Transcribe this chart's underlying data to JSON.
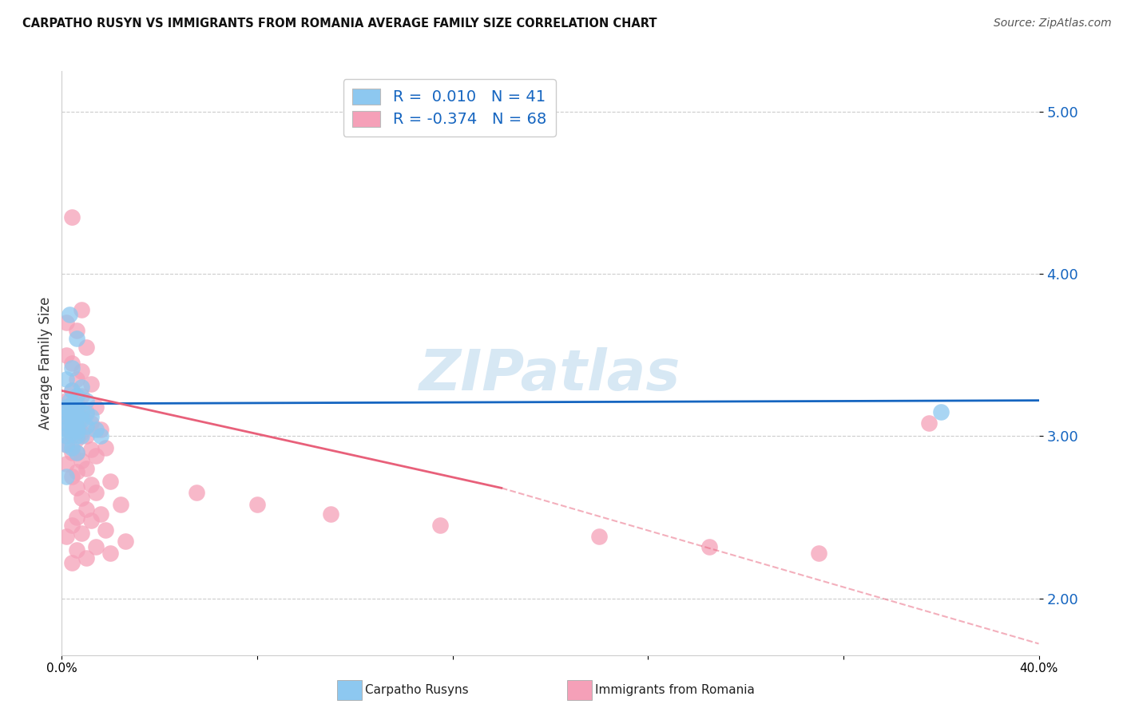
{
  "title": "CARPATHO RUSYN VS IMMIGRANTS FROM ROMANIA AVERAGE FAMILY SIZE CORRELATION CHART",
  "source": "Source: ZipAtlas.com",
  "ylabel": "Average Family Size",
  "right_yticks": [
    2.0,
    3.0,
    4.0,
    5.0
  ],
  "background_color": "#ffffff",
  "legend_label_1": "Carpatho Rusyns",
  "legend_label_2": "Immigrants from Romania",
  "color_blue": "#8DC8F0",
  "color_pink": "#F5A0B8",
  "line_blue": "#1565C0",
  "line_pink": "#E8607A",
  "watermark": "ZIPatlas",
  "blue_x": [
    0.003,
    0.006,
    0.004,
    0.002,
    0.008,
    0.004,
    0.006,
    0.003,
    0.01,
    0.004,
    0.002,
    0.006,
    0.004,
    0.002,
    0.008,
    0.01,
    0.006,
    0.004,
    0.012,
    0.002,
    0.004,
    0.008,
    0.006,
    0.002,
    0.004,
    0.01,
    0.006,
    0.004,
    0.014,
    0.002,
    0.006,
    0.004,
    0.008,
    0.002,
    0.006,
    0.016,
    0.002,
    0.004,
    0.006,
    0.002,
    0.36
  ],
  "blue_y": [
    3.75,
    3.6,
    3.42,
    3.35,
    3.3,
    3.28,
    3.25,
    3.22,
    3.22,
    3.2,
    3.18,
    3.18,
    3.16,
    3.15,
    3.15,
    3.14,
    3.13,
    3.12,
    3.12,
    3.12,
    3.1,
    3.1,
    3.1,
    3.08,
    3.08,
    3.06,
    3.05,
    3.05,
    3.04,
    3.04,
    3.03,
    3.02,
    3.0,
    3.0,
    3.0,
    3.0,
    2.95,
    2.93,
    2.9,
    2.75,
    3.15
  ],
  "pink_x": [
    0.004,
    0.008,
    0.002,
    0.006,
    0.01,
    0.002,
    0.004,
    0.008,
    0.006,
    0.012,
    0.004,
    0.008,
    0.002,
    0.006,
    0.014,
    0.004,
    0.01,
    0.006,
    0.002,
    0.008,
    0.004,
    0.012,
    0.006,
    0.002,
    0.016,
    0.008,
    0.004,
    0.01,
    0.006,
    0.002,
    0.018,
    0.012,
    0.004,
    0.006,
    0.014,
    0.008,
    0.002,
    0.01,
    0.006,
    0.004,
    0.02,
    0.012,
    0.006,
    0.014,
    0.008,
    0.024,
    0.01,
    0.016,
    0.006,
    0.012,
    0.004,
    0.018,
    0.008,
    0.002,
    0.026,
    0.014,
    0.006,
    0.02,
    0.01,
    0.004,
    0.055,
    0.08,
    0.11,
    0.155,
    0.22,
    0.265,
    0.31,
    0.355
  ],
  "pink_y": [
    4.35,
    3.78,
    3.7,
    3.65,
    3.55,
    3.5,
    3.45,
    3.4,
    3.35,
    3.32,
    3.28,
    3.25,
    3.22,
    3.2,
    3.18,
    3.18,
    3.15,
    3.15,
    3.12,
    3.12,
    3.1,
    3.08,
    3.06,
    3.05,
    3.04,
    3.02,
    3.0,
    3.0,
    2.98,
    2.95,
    2.93,
    2.92,
    2.9,
    2.9,
    2.88,
    2.85,
    2.83,
    2.8,
    2.78,
    2.75,
    2.72,
    2.7,
    2.68,
    2.65,
    2.62,
    2.58,
    2.55,
    2.52,
    2.5,
    2.48,
    2.45,
    2.42,
    2.4,
    2.38,
    2.35,
    2.32,
    2.3,
    2.28,
    2.25,
    2.22,
    2.65,
    2.58,
    2.52,
    2.45,
    2.38,
    2.32,
    2.28,
    3.08
  ],
  "xlim": [
    0.0,
    0.4
  ],
  "ylim": [
    1.65,
    5.25
  ],
  "grid_color": "#cccccc",
  "blue_trend_y0": 3.2,
  "blue_trend_y1": 3.22,
  "pink_trend_x0": 0.0,
  "pink_trend_y0": 3.28,
  "pink_trend_solid_x1": 0.18,
  "pink_trend_solid_y1": 2.68,
  "pink_trend_dash_x1": 0.4,
  "pink_trend_dash_y1": 1.72
}
